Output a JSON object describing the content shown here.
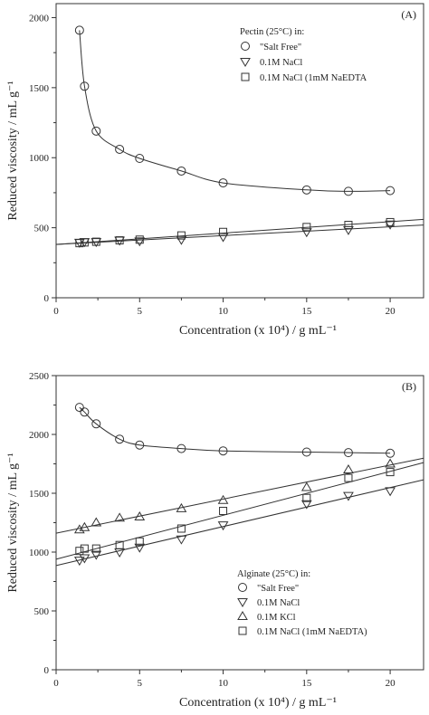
{
  "chart_data": [
    {
      "type": "scatter",
      "panel_label": "(A)",
      "legend_title": "Pectin  (25°C) in:",
      "xlabel": "Concentration (x 10⁴) / g mL⁻¹",
      "ylabel": "Reduced viscosity / mL g⁻¹",
      "xlim": [
        0,
        22
      ],
      "ylim": [
        0,
        2100
      ],
      "xticks": [
        0,
        5,
        10,
        15,
        20
      ],
      "yticks": [
        0,
        500,
        1000,
        1500,
        2000
      ],
      "grid": false,
      "legend_position": "top-right",
      "series": [
        {
          "name": "\"Salt Free\"",
          "marker": "circle",
          "x": [
            1.4,
            1.7,
            2.4,
            3.8,
            5.0,
            7.5,
            10.0,
            15.0,
            17.5,
            20.0
          ],
          "y": [
            1910,
            1510,
            1190,
            1060,
            995,
            905,
            820,
            770,
            760,
            765
          ]
        },
        {
          "name": "0.1M NaCl",
          "marker": "triangle-down",
          "x": [
            1.4,
            1.7,
            2.4,
            3.8,
            5.0,
            7.5,
            10.0,
            15.0,
            17.5,
            20.0
          ],
          "y": [
            395,
            400,
            400,
            410,
            405,
            415,
            435,
            470,
            485,
            525
          ]
        },
        {
          "name": "0.1M NaCl   (1mM NaEDTA",
          "marker": "square",
          "x": [
            1.4,
            1.7,
            2.4,
            3.8,
            5.0,
            7.5,
            10.0,
            15.0,
            17.5,
            20.0
          ],
          "y": [
            390,
            395,
            400,
            410,
            415,
            445,
            470,
            505,
            520,
            540
          ]
        }
      ]
    },
    {
      "type": "scatter",
      "panel_label": "(B)",
      "legend_title": "Alginate  (25°C) in:",
      "xlabel": "Concentration (x 10⁴) / g mL⁻¹",
      "ylabel": "Reduced viscosity / mL g⁻¹",
      "xlim": [
        0,
        22
      ],
      "ylim": [
        0,
        2500
      ],
      "xticks": [
        0,
        5,
        10,
        15,
        20
      ],
      "yticks": [
        0,
        500,
        1000,
        1500,
        2000,
        2500
      ],
      "grid": false,
      "legend_position": "bottom-right",
      "series": [
        {
          "name": "\"Salt Free\"",
          "marker": "circle",
          "x": [
            1.4,
            1.7,
            2.4,
            3.8,
            5.0,
            7.5,
            10.0,
            15.0,
            17.5,
            20.0
          ],
          "y": [
            2230,
            2190,
            2090,
            1960,
            1910,
            1880,
            1860,
            1850,
            1845,
            1840
          ]
        },
        {
          "name": "0.1M NaCl",
          "marker": "triangle-down",
          "x": [
            1.4,
            1.7,
            2.4,
            3.8,
            5.0,
            7.5,
            10.0,
            15.0,
            17.5,
            20.0
          ],
          "y": [
            930,
            950,
            980,
            1000,
            1040,
            1110,
            1230,
            1410,
            1480,
            1520
          ]
        },
        {
          "name": "0.1M KCl",
          "marker": "triangle-up",
          "x": [
            1.4,
            1.7,
            2.4,
            3.8,
            5.0,
            7.5,
            10.0,
            15.0,
            17.5,
            20.0
          ],
          "y": [
            1190,
            1210,
            1250,
            1290,
            1300,
            1370,
            1440,
            1550,
            1700,
            1750
          ]
        },
        {
          "name": "0.1M NaCl (1mM NaEDTA)",
          "marker": "square",
          "x": [
            1.4,
            1.7,
            2.4,
            3.8,
            5.0,
            7.5,
            10.0,
            15.0,
            17.5,
            20.0
          ],
          "y": [
            1010,
            1030,
            1030,
            1060,
            1090,
            1200,
            1350,
            1460,
            1630,
            1680
          ]
        }
      ]
    }
  ]
}
